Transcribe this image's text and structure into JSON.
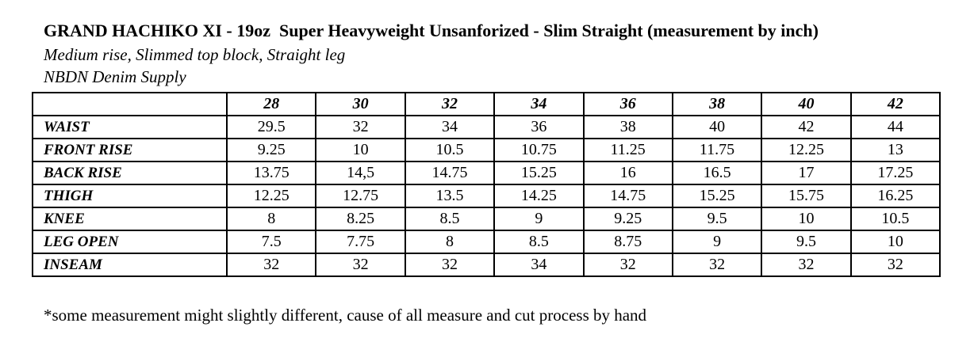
{
  "header": {
    "title": "GRAND HACHIKO XI - 19oz  Super Heavyweight Unsanforized - Slim Straight (measurement by inch)",
    "fit_description": "Medium rise, Slimmed top block, Straight leg",
    "brand": "NBDN Denim Supply"
  },
  "table": {
    "columns": [
      "",
      "28",
      "30",
      "32",
      "34",
      "36",
      "38",
      "40",
      "42"
    ],
    "rows": [
      {
        "label": "WAIST",
        "values": [
          "29.5",
          "32",
          "34",
          "36",
          "38",
          "40",
          "42",
          "44"
        ]
      },
      {
        "label": "FRONT RISE",
        "values": [
          "9.25",
          "10",
          "10.5",
          "10.75",
          "11.25",
          "11.75",
          "12.25",
          "13"
        ]
      },
      {
        "label": "BACK RISE",
        "values": [
          "13.75",
          "14,5",
          "14.75",
          "15.25",
          "16",
          "16.5",
          "17",
          "17.25"
        ]
      },
      {
        "label": "THIGH",
        "values": [
          "12.25",
          "12.75",
          "13.5",
          "14.25",
          "14.75",
          "15.25",
          "15.75",
          "16.25"
        ]
      },
      {
        "label": "KNEE",
        "values": [
          "8",
          "8.25",
          "8.5",
          "9",
          "9.25",
          "9.5",
          "10",
          "10.5"
        ]
      },
      {
        "label": "LEG OPEN",
        "values": [
          "7.5",
          "7.75",
          "8",
          "8.5",
          "8.75",
          "9",
          "9.5",
          "10"
        ]
      },
      {
        "label": "INSEAM",
        "values": [
          "32",
          "32",
          "32",
          "34",
          "32",
          "32",
          "32",
          "32"
        ]
      }
    ]
  },
  "footnote": "*some measurement might slightly different, cause of all measure and cut process by hand",
  "colors": {
    "background": "#ffffff",
    "text": "#000000",
    "table_border": "#000000"
  }
}
